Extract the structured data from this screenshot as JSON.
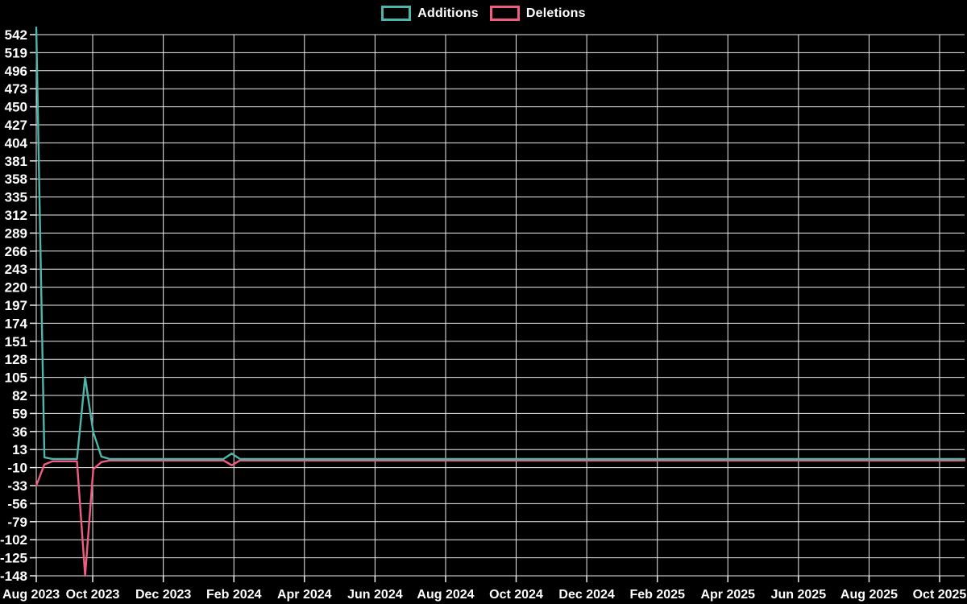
{
  "chart_data": {
    "type": "line",
    "title": "",
    "description": "Weekly additions/deletions frequency chart on black background, one data point per week",
    "legend": {
      "position": "top-center",
      "items": [
        {
          "label": "Additions",
          "color": "#4db6ac"
        },
        {
          "label": "Deletions",
          "color": "#ef5d82"
        }
      ]
    },
    "x_axis": {
      "tick_labels": [
        "Aug 2023",
        "Oct 2023",
        "Dec 2023",
        "Feb 2024",
        "Apr 2024",
        "Jun 2024",
        "Aug 2024",
        "Oct 2024",
        "Dec 2024",
        "Feb 2025",
        "Apr 2025",
        "Jun 2025",
        "Aug 2025",
        "Oct 2025"
      ],
      "tick_positions_weeks": [
        0,
        6.93,
        15.6,
        24.27,
        32.93,
        41.6,
        50.27,
        58.93,
        67.6,
        76.27,
        84.93,
        93.6,
        102.27,
        110.93
      ],
      "range_weeks": [
        0,
        114
      ],
      "grid": true
    },
    "y_axis": {
      "min": -148,
      "max": 542,
      "tick_step": 23,
      "tick_labels": [
        "542",
        "519",
        "496",
        "473",
        "450",
        "427",
        "404",
        "381",
        "358",
        "335",
        "312",
        "289",
        "266",
        "243",
        "220",
        "197",
        "174",
        "151",
        "128",
        "105",
        "82",
        "59",
        "36",
        "13",
        "-10",
        "-33",
        "-56",
        "-79",
        "-102",
        "-125",
        "-148"
      ],
      "grid": true
    },
    "weeks_total": 115,
    "series": [
      {
        "name": "Additions",
        "color": "#4db6ac",
        "baseline": 1,
        "overrides": {
          "0": 551,
          "1": 3,
          "6": 105,
          "7": 35,
          "8": 4,
          "24": 8
        }
      },
      {
        "name": "Deletions",
        "color": "#ef5d82",
        "baseline": -1,
        "overrides": {
          "0": -33,
          "1": -6,
          "2": -2,
          "3": -2,
          "4": -2,
          "5": -2,
          "6": -148,
          "7": -12,
          "8": -3,
          "24": -7
        }
      }
    ]
  },
  "colors": {
    "background": "#000000",
    "grid": "#ededed",
    "text": "#ffffff",
    "additions": "#4db6ac",
    "deletions": "#ef5d82"
  }
}
